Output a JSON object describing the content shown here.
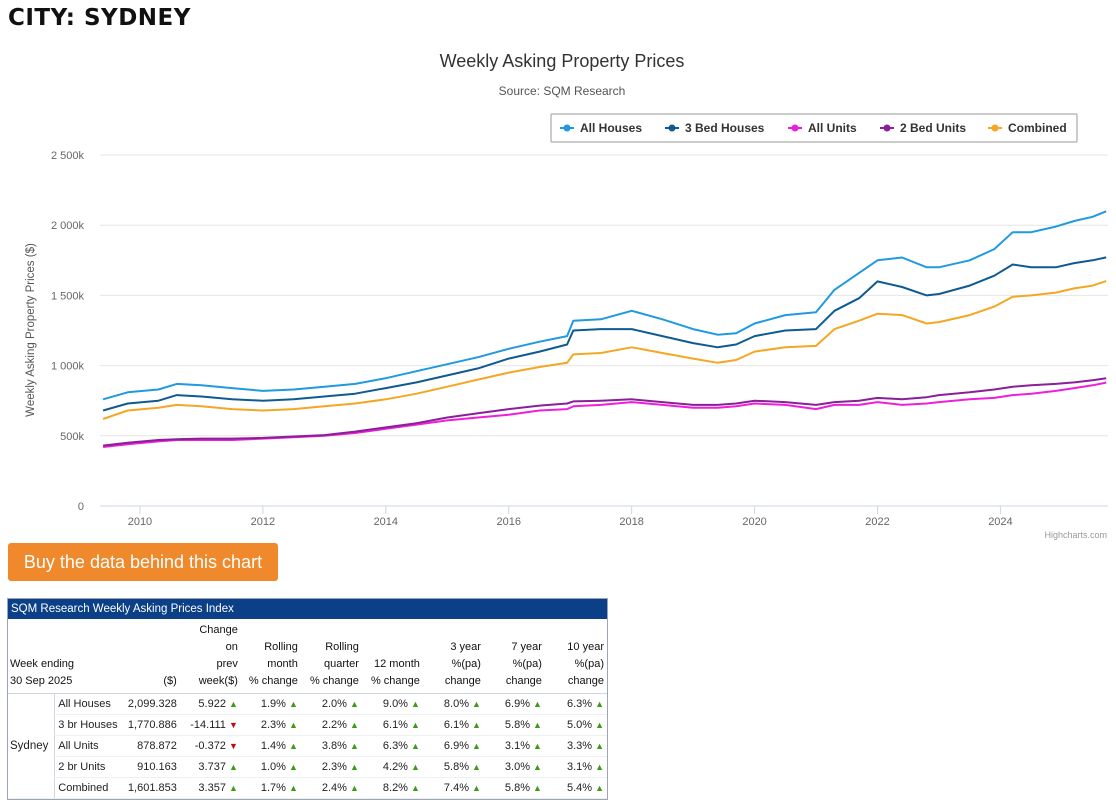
{
  "page": {
    "city_title": "CITY: SYDNEY",
    "buy_button": "Buy the data behind this chart"
  },
  "colors": {
    "all_houses": "#1f9ae0",
    "bed3_houses": "#0f5a91",
    "all_units": "#ee1fdb",
    "bed2_units": "#8a1f98",
    "combined": "#f5a623",
    "button": "#f0892b",
    "table_header": "#0b3f87"
  },
  "chart_data": {
    "type": "line",
    "title": "Weekly Asking Property Prices",
    "subtitle": "Source: SQM Research",
    "xlabel": "",
    "ylabel": "Weekly Asking Property Prices ($)",
    "credit": "Highcharts.com",
    "legend_position": "top-right",
    "xlim": [
      2009.35,
      2025.75
    ],
    "ylim": [
      0,
      2500000
    ],
    "y_ticks": [
      0,
      500000,
      1000000,
      1500000,
      2000000,
      2500000
    ],
    "y_tick_labels": [
      "0",
      "500k",
      "1 000k",
      "1 500k",
      "2 000k",
      "2 500k"
    ],
    "x_ticks": [
      2010,
      2012,
      2014,
      2016,
      2018,
      2020,
      2022,
      2024
    ],
    "x_tick_labels": [
      "2010",
      "2012",
      "2014",
      "2016",
      "2018",
      "2020",
      "2022",
      "2024"
    ],
    "x": [
      2009.4,
      2009.8,
      2010.3,
      2010.6,
      2011.0,
      2011.5,
      2012.0,
      2012.5,
      2013.0,
      2013.5,
      2014.0,
      2014.5,
      2015.0,
      2015.5,
      2016.0,
      2016.5,
      2016.95,
      2017.05,
      2017.5,
      2018.0,
      2018.5,
      2019.0,
      2019.4,
      2019.7,
      2020.0,
      2020.5,
      2021.0,
      2021.3,
      2021.7,
      2022.0,
      2022.4,
      2022.8,
      2023.0,
      2023.5,
      2023.9,
      2024.2,
      2024.5,
      2024.9,
      2025.2,
      2025.5,
      2025.72
    ],
    "series": [
      {
        "name": "All Houses",
        "color": "#1f9ae0",
        "values": [
          760000,
          810000,
          830000,
          870000,
          860000,
          840000,
          820000,
          830000,
          850000,
          870000,
          910000,
          960000,
          1010000,
          1060000,
          1120000,
          1170000,
          1210000,
          1320000,
          1330000,
          1390000,
          1330000,
          1260000,
          1220000,
          1230000,
          1300000,
          1360000,
          1380000,
          1540000,
          1660000,
          1750000,
          1770000,
          1700000,
          1700000,
          1750000,
          1830000,
          1950000,
          1950000,
          1990000,
          2030000,
          2060000,
          2099328
        ]
      },
      {
        "name": "3 Bed Houses",
        "color": "#0f5a91",
        "values": [
          680000,
          730000,
          750000,
          790000,
          780000,
          760000,
          750000,
          760000,
          780000,
          800000,
          840000,
          880000,
          930000,
          980000,
          1050000,
          1100000,
          1150000,
          1250000,
          1260000,
          1260000,
          1210000,
          1160000,
          1130000,
          1150000,
          1210000,
          1250000,
          1260000,
          1390000,
          1480000,
          1600000,
          1560000,
          1500000,
          1510000,
          1570000,
          1640000,
          1720000,
          1700000,
          1700000,
          1730000,
          1750000,
          1770886
        ]
      },
      {
        "name": "All Units",
        "color": "#ee1fdb",
        "values": [
          420000,
          440000,
          460000,
          470000,
          470000,
          470000,
          480000,
          490000,
          500000,
          520000,
          550000,
          580000,
          610000,
          630000,
          650000,
          680000,
          690000,
          710000,
          720000,
          740000,
          720000,
          700000,
          700000,
          710000,
          730000,
          720000,
          690000,
          720000,
          720000,
          740000,
          720000,
          730000,
          740000,
          760000,
          770000,
          790000,
          800000,
          820000,
          840000,
          860000,
          878872
        ]
      },
      {
        "name": "2 Bed Units",
        "color": "#8a1f98",
        "values": [
          430000,
          450000,
          470000,
          475000,
          480000,
          480000,
          485000,
          495000,
          505000,
          530000,
          560000,
          590000,
          630000,
          660000,
          690000,
          715000,
          730000,
          745000,
          750000,
          760000,
          740000,
          720000,
          720000,
          730000,
          750000,
          740000,
          720000,
          740000,
          750000,
          770000,
          760000,
          775000,
          790000,
          810000,
          830000,
          850000,
          860000,
          870000,
          880000,
          895000,
          910163
        ]
      },
      {
        "name": "Combined",
        "color": "#f5a623",
        "values": [
          620000,
          680000,
          700000,
          720000,
          710000,
          690000,
          680000,
          690000,
          710000,
          730000,
          760000,
          800000,
          850000,
          900000,
          950000,
          990000,
          1020000,
          1080000,
          1090000,
          1130000,
          1090000,
          1050000,
          1020000,
          1040000,
          1100000,
          1130000,
          1140000,
          1260000,
          1320000,
          1370000,
          1360000,
          1300000,
          1310000,
          1360000,
          1420000,
          1490000,
          1500000,
          1520000,
          1550000,
          1570000,
          1601853
        ]
      }
    ]
  },
  "table": {
    "title": "SQM Research Weekly Asking Prices Index",
    "headers": {
      "week_ending": "Week ending",
      "week_date": "30 Sep 2025",
      "price": "($)",
      "change": [
        "Change",
        "on",
        "prev",
        "week($)"
      ],
      "rolling_month": [
        "Rolling",
        "month",
        "% change"
      ],
      "rolling_quarter": [
        "Rolling",
        "quarter",
        "% change"
      ],
      "twelve_month": [
        "12 month",
        "% change"
      ],
      "three_year": [
        "3 year",
        "%(pa)",
        "change"
      ],
      "seven_year": [
        "7 year",
        "%(pa)",
        "change"
      ],
      "ten_year": [
        "10 year",
        "%(pa)",
        "change"
      ]
    },
    "city": "Sydney",
    "rows": [
      {
        "name": "All Houses",
        "price": "2,099.328",
        "chg": "5.922",
        "dir": "up",
        "m": "1.9%",
        "q": "2.0%",
        "y12": "9.0%",
        "y3": "8.0%",
        "y7": "6.9%",
        "y10": "6.3%"
      },
      {
        "name": "3 br Houses",
        "price": "1,770.886",
        "chg": "-14.111",
        "dir": "down",
        "m": "2.3%",
        "q": "2.2%",
        "y12": "6.1%",
        "y3": "6.1%",
        "y7": "5.8%",
        "y10": "5.0%"
      },
      {
        "name": "All Units",
        "price": "878.872",
        "chg": "-0.372",
        "dir": "down",
        "m": "1.4%",
        "q": "3.8%",
        "y12": "6.3%",
        "y3": "6.9%",
        "y7": "3.1%",
        "y10": "3.3%"
      },
      {
        "name": "2 br Units",
        "price": "910.163",
        "chg": "3.737",
        "dir": "up",
        "m": "1.0%",
        "q": "2.3%",
        "y12": "4.2%",
        "y3": "5.8%",
        "y7": "3.0%",
        "y10": "3.1%"
      },
      {
        "name": "Combined",
        "price": "1,601.853",
        "chg": "3.357",
        "dir": "up",
        "m": "1.7%",
        "q": "2.4%",
        "y12": "8.2%",
        "y3": "7.4%",
        "y7": "5.8%",
        "y10": "5.4%"
      }
    ]
  }
}
